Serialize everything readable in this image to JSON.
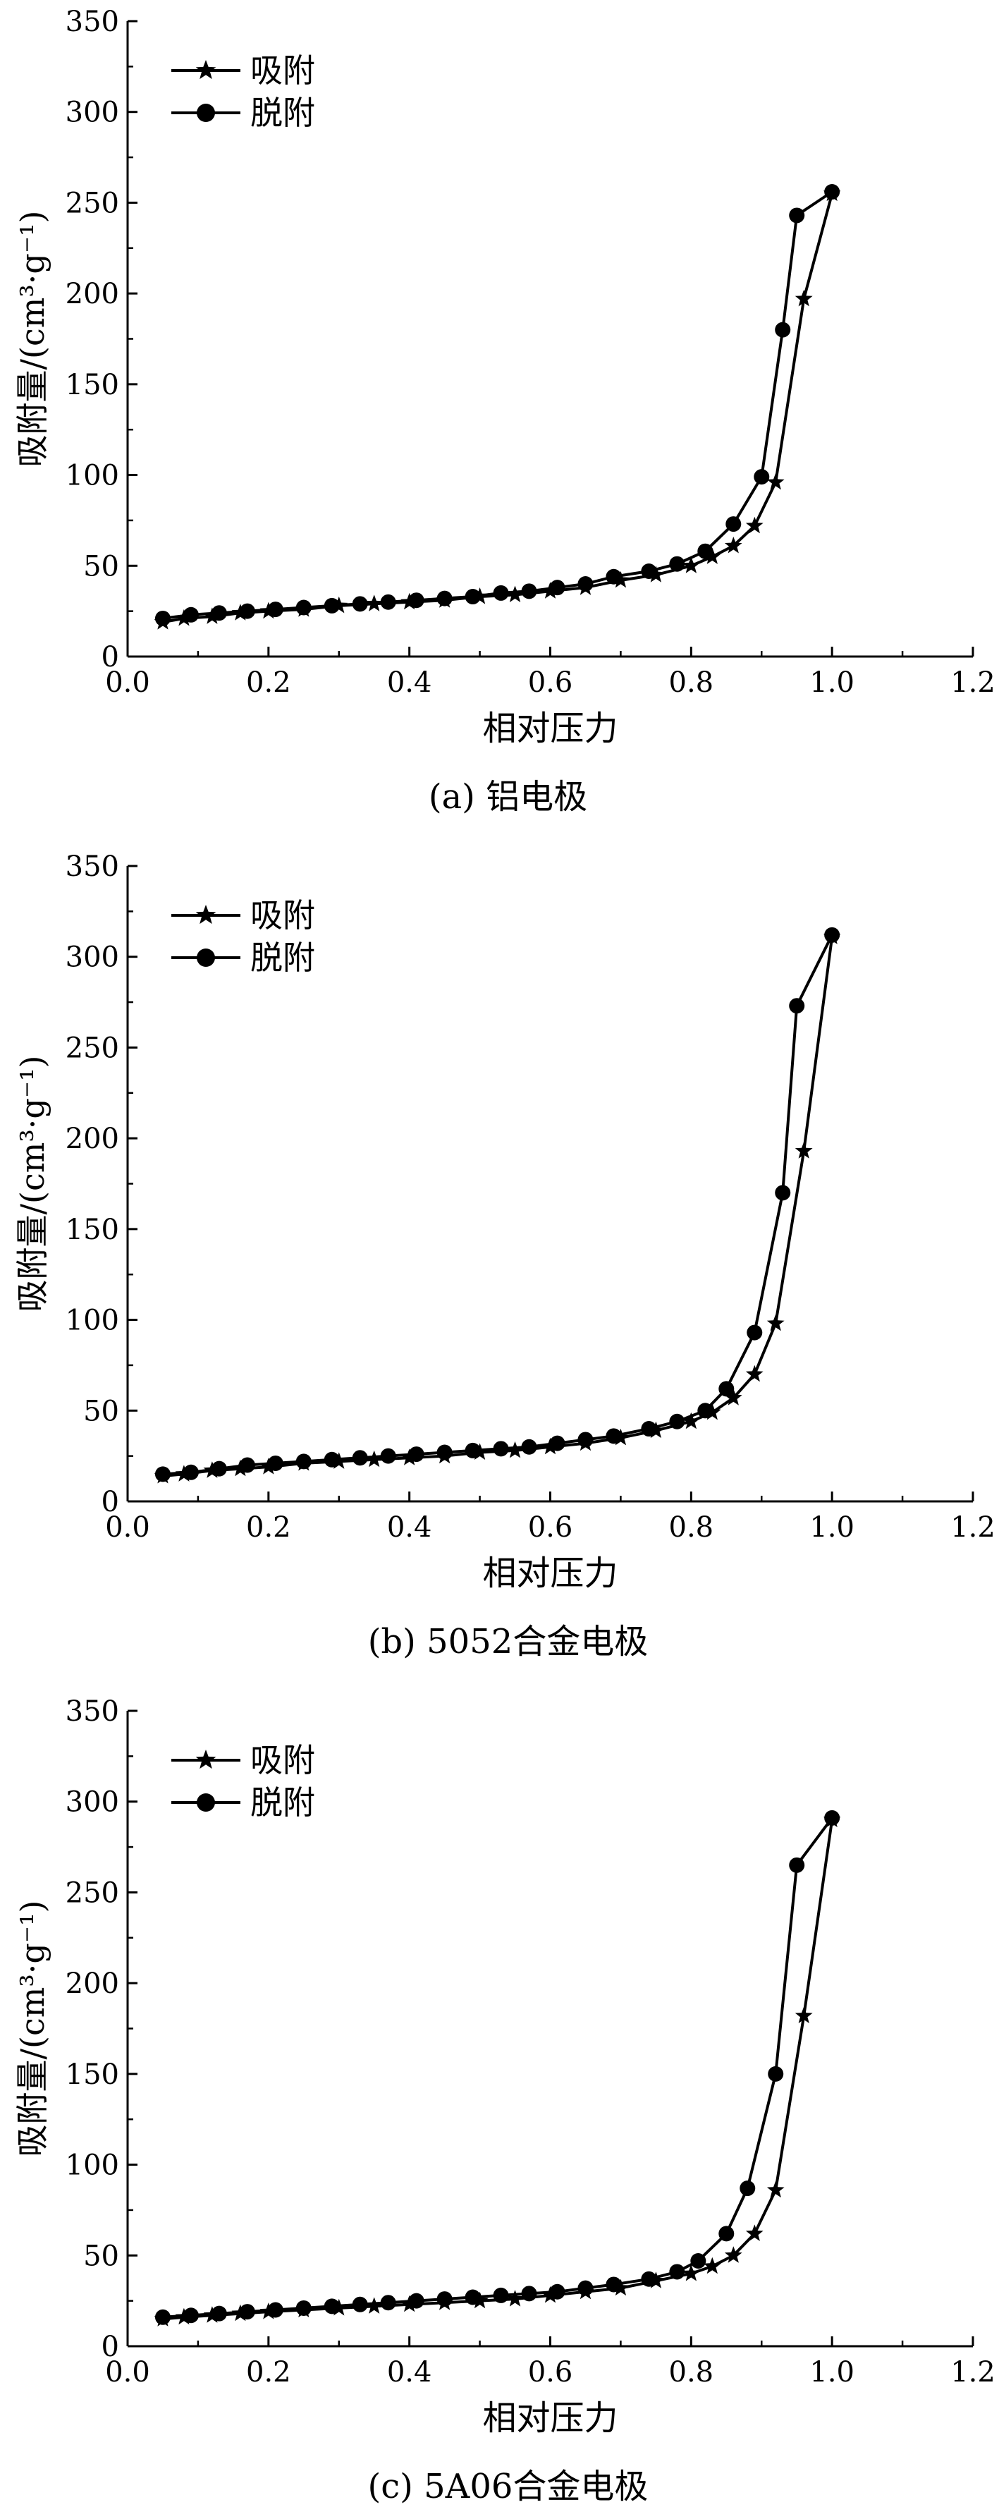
{
  "chart_data": [
    {
      "type": "line",
      "caption": "(a) 铝电极",
      "xlabel": "相对压力",
      "ylabel": "吸附量/(cm³·g⁻¹)",
      "xlim": [
        0.0,
        1.2
      ],
      "ylim": [
        0,
        350
      ],
      "xticks": [
        "0.0",
        "0.2",
        "0.4",
        "0.6",
        "0.8",
        "1.0",
        "1.2"
      ],
      "yticks": [
        "0",
        "50",
        "100",
        "150",
        "200",
        "250",
        "300",
        "350"
      ],
      "grid": false,
      "legend_position": "top-left",
      "series": [
        {
          "name": "吸附",
          "marker": "star",
          "x": [
            0.05,
            0.08,
            0.12,
            0.16,
            0.2,
            0.25,
            0.3,
            0.35,
            0.4,
            0.45,
            0.5,
            0.55,
            0.6,
            0.65,
            0.7,
            0.75,
            0.8,
            0.83,
            0.86,
            0.89,
            0.92,
            0.96,
            1.0
          ],
          "y": [
            19,
            21,
            22,
            24,
            25,
            26,
            28,
            29,
            30,
            31,
            33,
            34,
            36,
            38,
            42,
            45,
            50,
            55,
            61,
            72,
            96,
            197,
            255
          ]
        },
        {
          "name": "脱附",
          "marker": "circle",
          "x": [
            0.05,
            0.09,
            0.13,
            0.17,
            0.21,
            0.25,
            0.29,
            0.33,
            0.37,
            0.41,
            0.45,
            0.49,
            0.53,
            0.57,
            0.61,
            0.65,
            0.69,
            0.74,
            0.78,
            0.82,
            0.86,
            0.9,
            0.93,
            0.95,
            1.0
          ],
          "y": [
            21,
            23,
            24,
            25,
            26,
            27,
            28,
            29,
            30,
            31,
            32,
            33,
            35,
            36,
            38,
            40,
            44,
            47,
            51,
            58,
            73,
            99,
            180,
            243,
            256
          ]
        }
      ]
    },
    {
      "type": "line",
      "caption": "(b) 5052合金电极",
      "xlabel": "相对压力",
      "ylabel": "吸附量/(cm³·g⁻¹)",
      "xlim": [
        0.0,
        1.2
      ],
      "ylim": [
        0,
        350
      ],
      "xticks": [
        "0.0",
        "0.2",
        "0.4",
        "0.6",
        "0.8",
        "1.0",
        "1.2"
      ],
      "yticks": [
        "0",
        "50",
        "100",
        "150",
        "200",
        "250",
        "300",
        "350"
      ],
      "grid": false,
      "legend_position": "top-left",
      "series": [
        {
          "name": "吸附",
          "marker": "star",
          "x": [
            0.05,
            0.08,
            0.12,
            0.16,
            0.2,
            0.25,
            0.3,
            0.35,
            0.4,
            0.45,
            0.5,
            0.55,
            0.6,
            0.65,
            0.7,
            0.75,
            0.8,
            0.83,
            0.86,
            0.89,
            0.92,
            0.96,
            1.0
          ],
          "y": [
            14,
            15,
            17,
            18,
            19,
            21,
            22,
            23,
            24,
            25,
            27,
            28,
            30,
            32,
            35,
            39,
            44,
            49,
            57,
            70,
            98,
            193,
            311
          ]
        },
        {
          "name": "脱附",
          "marker": "circle",
          "x": [
            0.05,
            0.09,
            0.13,
            0.17,
            0.21,
            0.25,
            0.29,
            0.33,
            0.37,
            0.41,
            0.45,
            0.49,
            0.53,
            0.57,
            0.61,
            0.65,
            0.69,
            0.74,
            0.78,
            0.82,
            0.85,
            0.89,
            0.93,
            0.95,
            1.0
          ],
          "y": [
            15,
            16,
            18,
            20,
            21,
            22,
            23,
            24,
            25,
            26,
            27,
            28,
            29,
            30,
            32,
            34,
            36,
            40,
            44,
            50,
            62,
            93,
            170,
            273,
            312
          ]
        }
      ]
    },
    {
      "type": "line",
      "caption": "(c) 5A06合金电极",
      "xlabel": "相对压力",
      "ylabel": "吸附量/(cm³·g⁻¹)",
      "xlim": [
        0.0,
        1.2
      ],
      "ylim": [
        0,
        350
      ],
      "xticks": [
        "0.0",
        "0.2",
        "0.4",
        "0.6",
        "0.8",
        "1.0",
        "1.2"
      ],
      "yticks": [
        "0",
        "50",
        "100",
        "150",
        "200",
        "250",
        "300",
        "350"
      ],
      "grid": false,
      "legend_position": "top-left",
      "series": [
        {
          "name": "吸附",
          "marker": "star",
          "x": [
            0.05,
            0.08,
            0.12,
            0.16,
            0.2,
            0.25,
            0.3,
            0.35,
            0.4,
            0.45,
            0.5,
            0.55,
            0.6,
            0.65,
            0.7,
            0.75,
            0.8,
            0.83,
            0.86,
            0.89,
            0.92,
            0.96,
            1.0
          ],
          "y": [
            15,
            16,
            17,
            18,
            19,
            20,
            21,
            22,
            23,
            24,
            25,
            26,
            28,
            30,
            32,
            36,
            40,
            44,
            50,
            62,
            86,
            182,
            290
          ]
        },
        {
          "name": "脱附",
          "marker": "circle",
          "x": [
            0.05,
            0.09,
            0.13,
            0.17,
            0.21,
            0.25,
            0.29,
            0.33,
            0.37,
            0.41,
            0.45,
            0.49,
            0.53,
            0.57,
            0.61,
            0.65,
            0.69,
            0.74,
            0.78,
            0.81,
            0.85,
            0.88,
            0.92,
            0.95,
            1.0
          ],
          "y": [
            16,
            17,
            18,
            19,
            20,
            21,
            22,
            23,
            24,
            25,
            26,
            27,
            28,
            29,
            30,
            32,
            34,
            37,
            41,
            47,
            62,
            87,
            150,
            265,
            291
          ]
        }
      ]
    }
  ]
}
